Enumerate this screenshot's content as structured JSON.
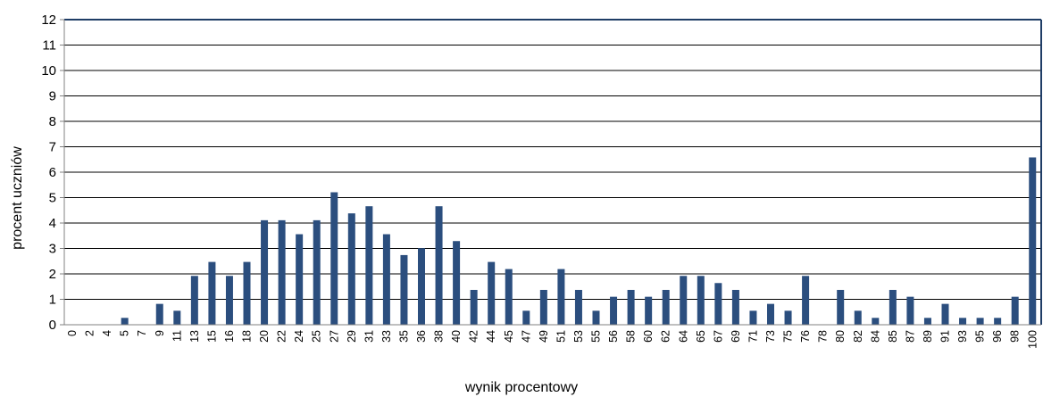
{
  "chart_data": {
    "type": "bar",
    "title": "",
    "xlabel": "wynik procentowy",
    "ylabel": "procent uczniów",
    "ylim": [
      0,
      12
    ],
    "yticks": [
      0,
      1,
      2,
      3,
      4,
      5,
      6,
      7,
      8,
      9,
      10,
      11,
      12
    ],
    "grid": true,
    "legend": "none",
    "colors": {
      "bar": "#2b4e7e",
      "plot_border": "#1f3d66",
      "grid": "#000000",
      "axis": "#808080"
    },
    "categories": [
      "0",
      "2",
      "4",
      "5",
      "7",
      "9",
      "11",
      "13",
      "15",
      "16",
      "18",
      "20",
      "22",
      "24",
      "25",
      "27",
      "29",
      "31",
      "33",
      "35",
      "36",
      "38",
      "40",
      "42",
      "44",
      "45",
      "47",
      "49",
      "51",
      "53",
      "55",
      "56",
      "58",
      "60",
      "62",
      "64",
      "65",
      "67",
      "69",
      "71",
      "73",
      "75",
      "76",
      "78",
      "80",
      "82",
      "84",
      "85",
      "87",
      "89",
      "91",
      "93",
      "95",
      "96",
      "98",
      "100"
    ],
    "values": [
      0,
      0,
      0,
      0.27,
      0,
      0.82,
      0.55,
      1.92,
      2.47,
      1.92,
      2.47,
      4.11,
      4.11,
      3.56,
      4.11,
      5.21,
      4.38,
      4.66,
      3.56,
      2.74,
      3.01,
      4.66,
      3.29,
      1.37,
      2.47,
      2.19,
      0.55,
      1.37,
      2.19,
      1.37,
      0.55,
      1.1,
      1.37,
      1.1,
      1.37,
      1.92,
      1.92,
      1.64,
      1.37,
      0.55,
      0.82,
      0.55,
      1.92,
      0,
      1.37,
      0.55,
      0.27,
      1.37,
      1.1,
      0.27,
      0.82,
      0.27,
      0.27,
      0.27,
      1.1,
      6.58
    ]
  }
}
